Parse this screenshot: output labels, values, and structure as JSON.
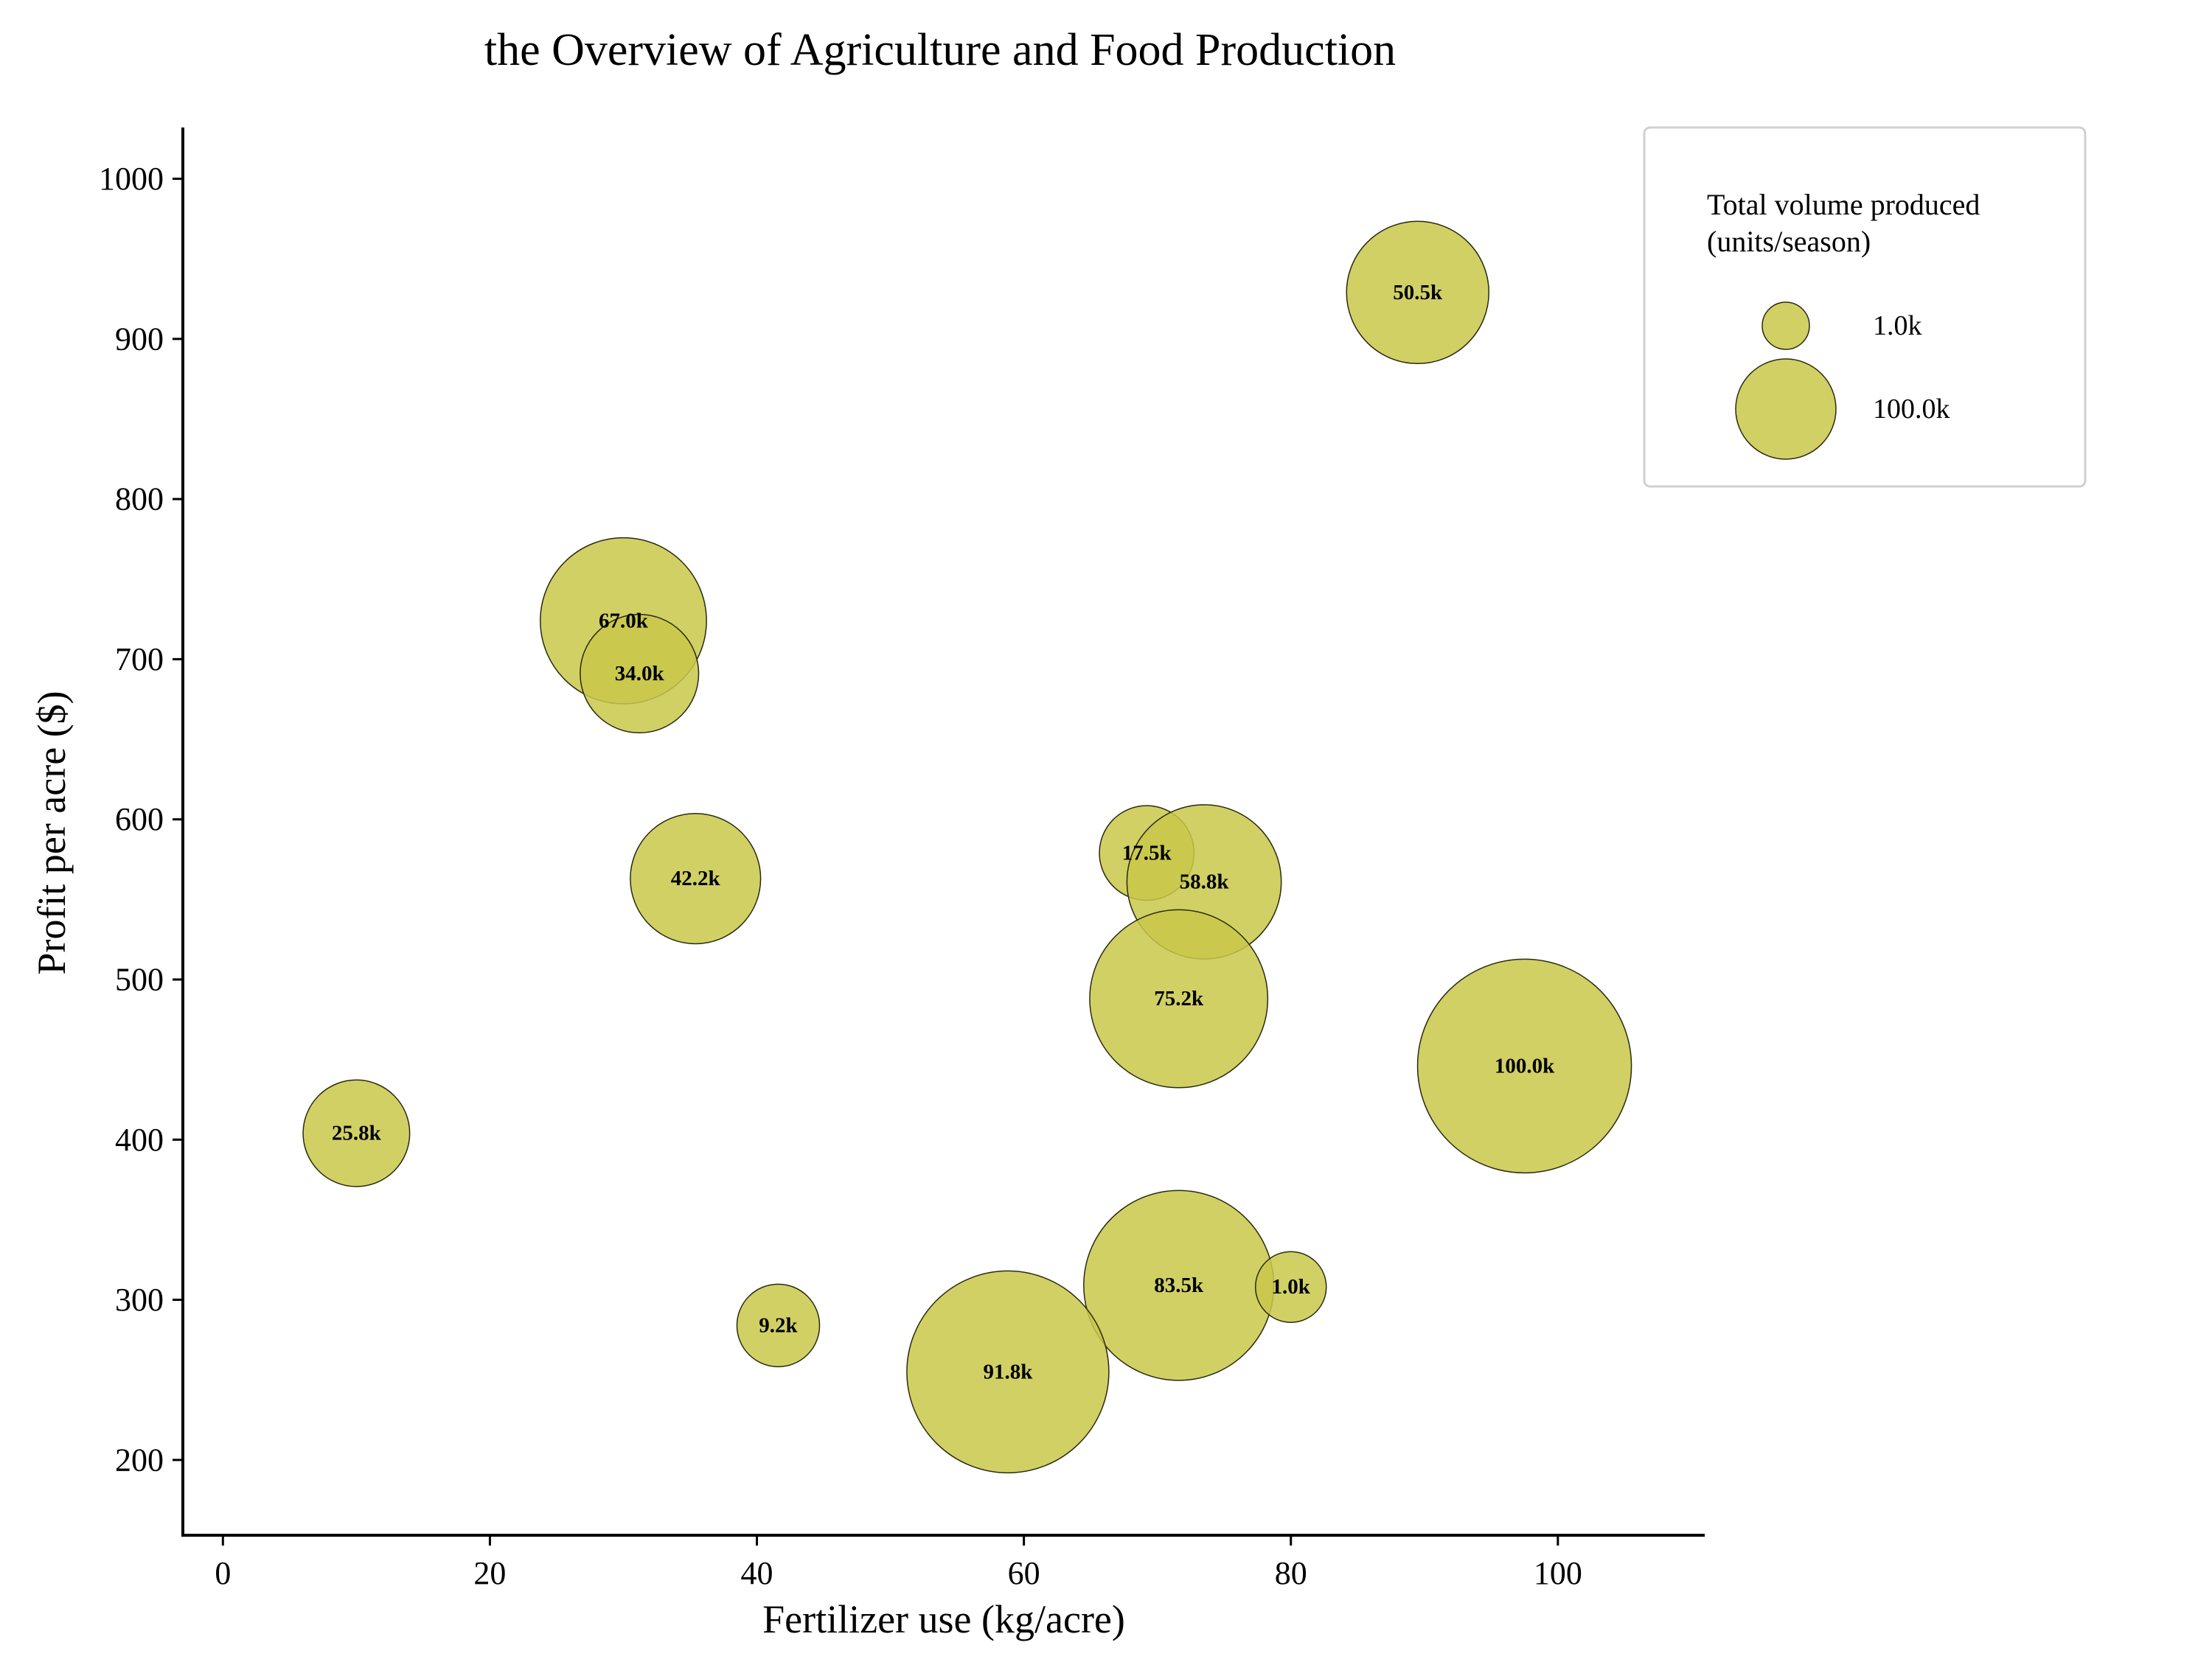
{
  "chart_data": {
    "type": "scatter",
    "title": "the Overview of Agriculture and Food Production",
    "xlabel": "Fertilizer use (kg/acre)",
    "ylabel": "Profit per acre ($)",
    "xlim": [
      -3,
      111
    ],
    "ylim": [
      153,
      1032
    ],
    "xticks": [
      0,
      20,
      40,
      60,
      80,
      100
    ],
    "yticks": [
      200,
      300,
      400,
      500,
      600,
      700,
      800,
      900,
      1000
    ],
    "grid": false,
    "legend": {
      "title": "Total volume produced\n(units/season)",
      "placement": "top-right",
      "entries": [
        {
          "label": "1.0k",
          "size": 1.0
        },
        {
          "label": "100.0k",
          "size": 100.0
        }
      ]
    },
    "size_unit": "k units/season",
    "points": [
      {
        "x": 89.5,
        "y": 929,
        "size": 50.5,
        "label": "50.5k"
      },
      {
        "x": 30.0,
        "y": 724,
        "size": 67.0,
        "label": "67.0k"
      },
      {
        "x": 31.2,
        "y": 691,
        "size": 34.0,
        "label": "34.0k"
      },
      {
        "x": 35.4,
        "y": 563,
        "size": 42.2,
        "label": "42.2k"
      },
      {
        "x": 69.2,
        "y": 579,
        "size": 17.5,
        "label": "17.5k"
      },
      {
        "x": 73.5,
        "y": 561,
        "size": 58.8,
        "label": "58.8k"
      },
      {
        "x": 71.6,
        "y": 488,
        "size": 75.2,
        "label": "75.2k"
      },
      {
        "x": 97.5,
        "y": 446,
        "size": 100.0,
        "label": "100.0k"
      },
      {
        "x": 10.0,
        "y": 404,
        "size": 25.8,
        "label": "25.8k"
      },
      {
        "x": 71.6,
        "y": 309,
        "size": 83.5,
        "label": "83.5k"
      },
      {
        "x": 80.0,
        "y": 308,
        "size": 1.0,
        "label": "1.0k"
      },
      {
        "x": 41.6,
        "y": 284,
        "size": 9.2,
        "label": "9.2k"
      },
      {
        "x": 58.8,
        "y": 255,
        "size": 91.8,
        "label": "91.8k"
      }
    ]
  },
  "colors": {
    "bubble_fill": "#c9c84a",
    "bubble_stroke": "#2a2a10",
    "axis": "#000000",
    "legend_border": "#d0d0d0"
  }
}
